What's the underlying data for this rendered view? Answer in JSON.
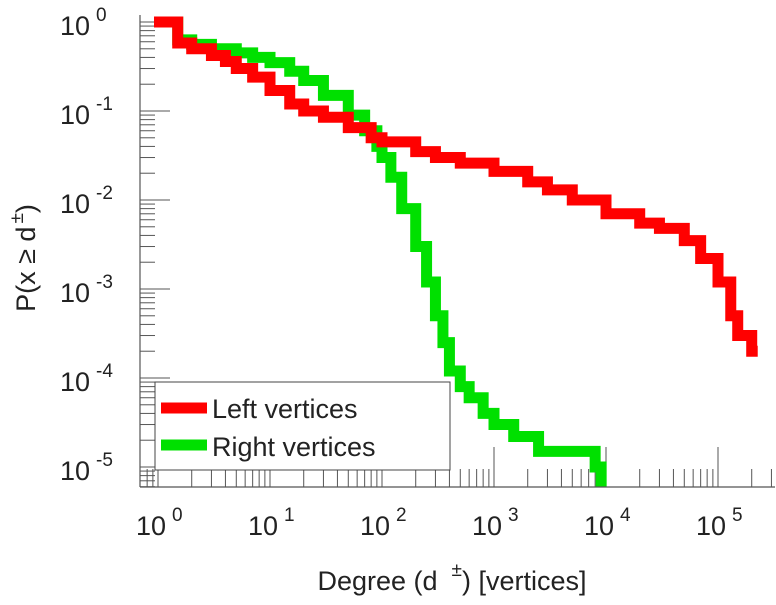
{
  "chart_data": {
    "type": "line",
    "title": "",
    "xlabel": "Degree (d ±) [vertices]",
    "xlabel_main": "Degree (d",
    "xlabel_sup": "±",
    "xlabel_tail": ") [vertices]",
    "ylabel": "P(x ≥ d±)",
    "ylabel_main": "P(x ≥ d",
    "ylabel_sup": "±",
    "ylabel_tail": ")",
    "xscale": "log",
    "yscale": "log",
    "xlim": [
      0.7,
      320000
    ],
    "ylim": [
      5.6e-06,
      1.2
    ],
    "x_ticks": [
      {
        "base": "10",
        "exp": "0",
        "value": 1
      },
      {
        "base": "10",
        "exp": "1",
        "value": 10
      },
      {
        "base": "10",
        "exp": "2",
        "value": 100
      },
      {
        "base": "10",
        "exp": "3",
        "value": 1000
      },
      {
        "base": "10",
        "exp": "4",
        "value": 10000
      },
      {
        "base": "10",
        "exp": "5",
        "value": 100000
      }
    ],
    "y_ticks": [
      {
        "base": "10",
        "exp": "0",
        "value": 1
      },
      {
        "base": "10",
        "exp": "-1",
        "value": 0.1
      },
      {
        "base": "10",
        "exp": "-2",
        "value": 0.01
      },
      {
        "base": "10",
        "exp": "-3",
        "value": 0.001
      },
      {
        "base": "10",
        "exp": "-4",
        "value": 0.0001
      },
      {
        "base": "10",
        "exp": "-5",
        "value": 1e-05
      }
    ],
    "legend_position": "bottom-left",
    "series": [
      {
        "name": "Left vertices",
        "color": "#ff0000",
        "step": true,
        "x": [
          1,
          1.5,
          2,
          3,
          4,
          5,
          7,
          10,
          15,
          20,
          30,
          50,
          80,
          100,
          200,
          300,
          500,
          1000,
          2000,
          3000,
          5000,
          10000,
          20000,
          30000,
          50000,
          70000,
          100000,
          130000,
          150000,
          200000
        ],
        "y": [
          1,
          0.58,
          0.5,
          0.42,
          0.36,
          0.3,
          0.24,
          0.17,
          0.12,
          0.1,
          0.085,
          0.065,
          0.05,
          0.045,
          0.035,
          0.03,
          0.026,
          0.021,
          0.016,
          0.013,
          0.01,
          0.007,
          0.0055,
          0.0048,
          0.0035,
          0.0022,
          0.0012,
          0.0005,
          0.0003,
          0.0002
        ]
      },
      {
        "name": "Right vertices",
        "color": "#00e000",
        "step": true,
        "x": [
          1,
          1.5,
          2,
          3,
          5,
          7,
          10,
          15,
          20,
          30,
          50,
          70,
          90,
          100,
          120,
          150,
          200,
          250,
          300,
          350,
          400,
          500,
          600,
          800,
          1000,
          1500,
          2500,
          8000
        ],
        "y": [
          1,
          0.63,
          0.56,
          0.5,
          0.45,
          0.4,
          0.35,
          0.28,
          0.22,
          0.15,
          0.09,
          0.06,
          0.04,
          0.03,
          0.018,
          0.008,
          0.003,
          0.0012,
          0.0005,
          0.00025,
          0.00012,
          8e-05,
          6e-05,
          4e-05,
          3e-05,
          2.2e-05,
          1.5e-05,
          1e-05
        ]
      }
    ]
  }
}
